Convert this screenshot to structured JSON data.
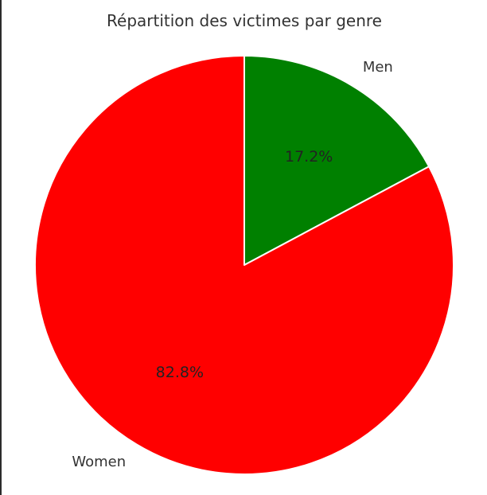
{
  "chart_data": {
    "type": "pie",
    "title": "Répartition des victimes par genre",
    "categories": [
      "Men",
      "Women"
    ],
    "values": [
      17.2,
      82.8
    ],
    "percent_labels": [
      "17.2%",
      "82.8%"
    ],
    "colors": [
      "#008000",
      "#ff0000"
    ],
    "start_angle_deg": 90,
    "direction": "clockwise",
    "slice_edge_color": "#ffffff"
  }
}
